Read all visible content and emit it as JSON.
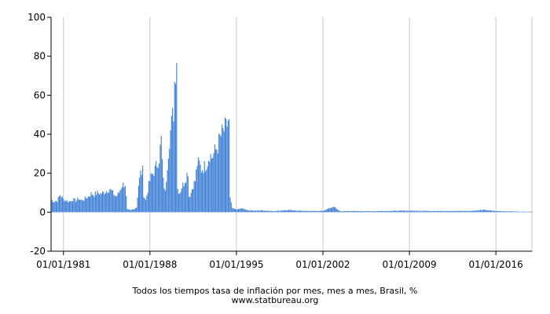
{
  "caption": {
    "line1": "Todos los tiempos tasa de inflación por mes, mes a mes, Brasil, %",
    "line2": "www.statbureau.org"
  },
  "chart_data": {
    "type": "bar",
    "title": "Todos los tiempos tasa de inflación por mes, mes a mes, Brasil, %",
    "xlabel": "",
    "ylabel": "",
    "ylim": [
      -20,
      100
    ],
    "xlim": [
      "1980-01-01",
      "2018-12-01"
    ],
    "grid": true,
    "legend": "none",
    "bar_color": "#3d7fd6",
    "y_ticks": [
      "-20",
      "0",
      "20",
      "40",
      "60",
      "80",
      "100"
    ],
    "x_ticks": [
      "01/01/1981",
      "01/01/1988",
      "01/01/1995",
      "01/01/2002",
      "01/01/2009",
      "01/01/2016"
    ],
    "series": [
      {
        "dates": [
          "1980-01",
          "1980-04",
          "1980-07",
          "1980-10",
          "1981-01",
          "1981-04",
          "1981-07",
          "1981-10",
          "1982-01",
          "1982-04",
          "1982-07",
          "1982-10",
          "1983-01",
          "1983-04",
          "1983-07",
          "1983-10",
          "1984-01",
          "1984-04",
          "1984-07",
          "1984-10",
          "1985-01",
          "1985-04",
          "1985-07",
          "1985-10",
          "1986-01",
          "1986-03",
          "1986-06",
          "1986-09",
          "1986-12",
          "1987-02",
          "1987-04",
          "1987-06",
          "1987-07",
          "1987-09",
          "1987-12",
          "1988-02",
          "1988-04",
          "1988-06",
          "1988-08",
          "1988-10",
          "1988-12",
          "1989-01",
          "1989-02",
          "1989-04",
          "1989-06",
          "1989-08",
          "1989-10",
          "1989-12",
          "1990-01",
          "1990-02",
          "1990-03",
          "1990-04",
          "1990-06",
          "1990-08",
          "1990-10",
          "1990-12",
          "1991-02",
          "1991-03",
          "1991-05",
          "1991-07",
          "1991-09",
          "1991-11",
          "1992-01",
          "1992-03",
          "1992-05",
          "1992-07",
          "1992-09",
          "1992-11",
          "1993-01",
          "1993-03",
          "1993-05",
          "1993-07",
          "1993-09",
          "1993-11",
          "1994-01",
          "1994-03",
          "1994-05",
          "1994-06",
          "1994-07",
          "1994-09",
          "1994-12",
          "1995-03",
          "1995-06",
          "1995-12",
          "1996-06",
          "1997-01",
          "1998-01",
          "1999-03",
          "2000-01",
          "2001-01",
          "2002-01",
          "2002-10",
          "2002-11",
          "2003-01",
          "2003-06",
          "2004-01",
          "2006-01",
          "2008-06",
          "2010-01",
          "2012-01",
          "2014-01",
          "2015-01",
          "2016-01",
          "2018-01"
        ],
        "values": [
          6.5,
          5.5,
          6.0,
          9.0,
          6.5,
          6.0,
          5.5,
          6.5,
          6.0,
          7.0,
          6.0,
          7.0,
          8.0,
          9.5,
          9.0,
          10.0,
          9.5,
          10.0,
          11.0,
          12.0,
          10.0,
          8.0,
          10.0,
          14.0,
          14.5,
          1.5,
          1.0,
          1.5,
          2.5,
          14.0,
          20.0,
          21.0,
          9.0,
          6.0,
          14.0,
          18.0,
          20.0,
          22.0,
          25.0,
          28.0,
          37.0,
          26.0,
          16.0,
          10.0,
          25.0,
          38.0,
          45.0,
          52.0,
          67.0,
          76.0,
          82.0,
          12.0,
          10.0,
          13.0,
          15.0,
          18.0,
          21.0,
          8.0,
          10.0,
          14.0,
          16.0,
          25.0,
          25.0,
          22.0,
          23.0,
          24.0,
          26.0,
          30.0,
          28.0,
          30.0,
          32.0,
          34.0,
          38.0,
          40.0,
          42.0,
          43.0,
          47.0,
          45.0,
          7.0,
          2.0,
          1.5,
          1.5,
          2.0,
          1.0,
          0.8,
          1.0,
          0.5,
          1.2,
          0.8,
          0.6,
          0.7,
          2.5,
          3.0,
          2.2,
          0.5,
          0.6,
          0.5,
          0.8,
          0.7,
          0.6,
          0.7,
          1.2,
          0.6,
          0.3
        ]
      }
    ]
  }
}
